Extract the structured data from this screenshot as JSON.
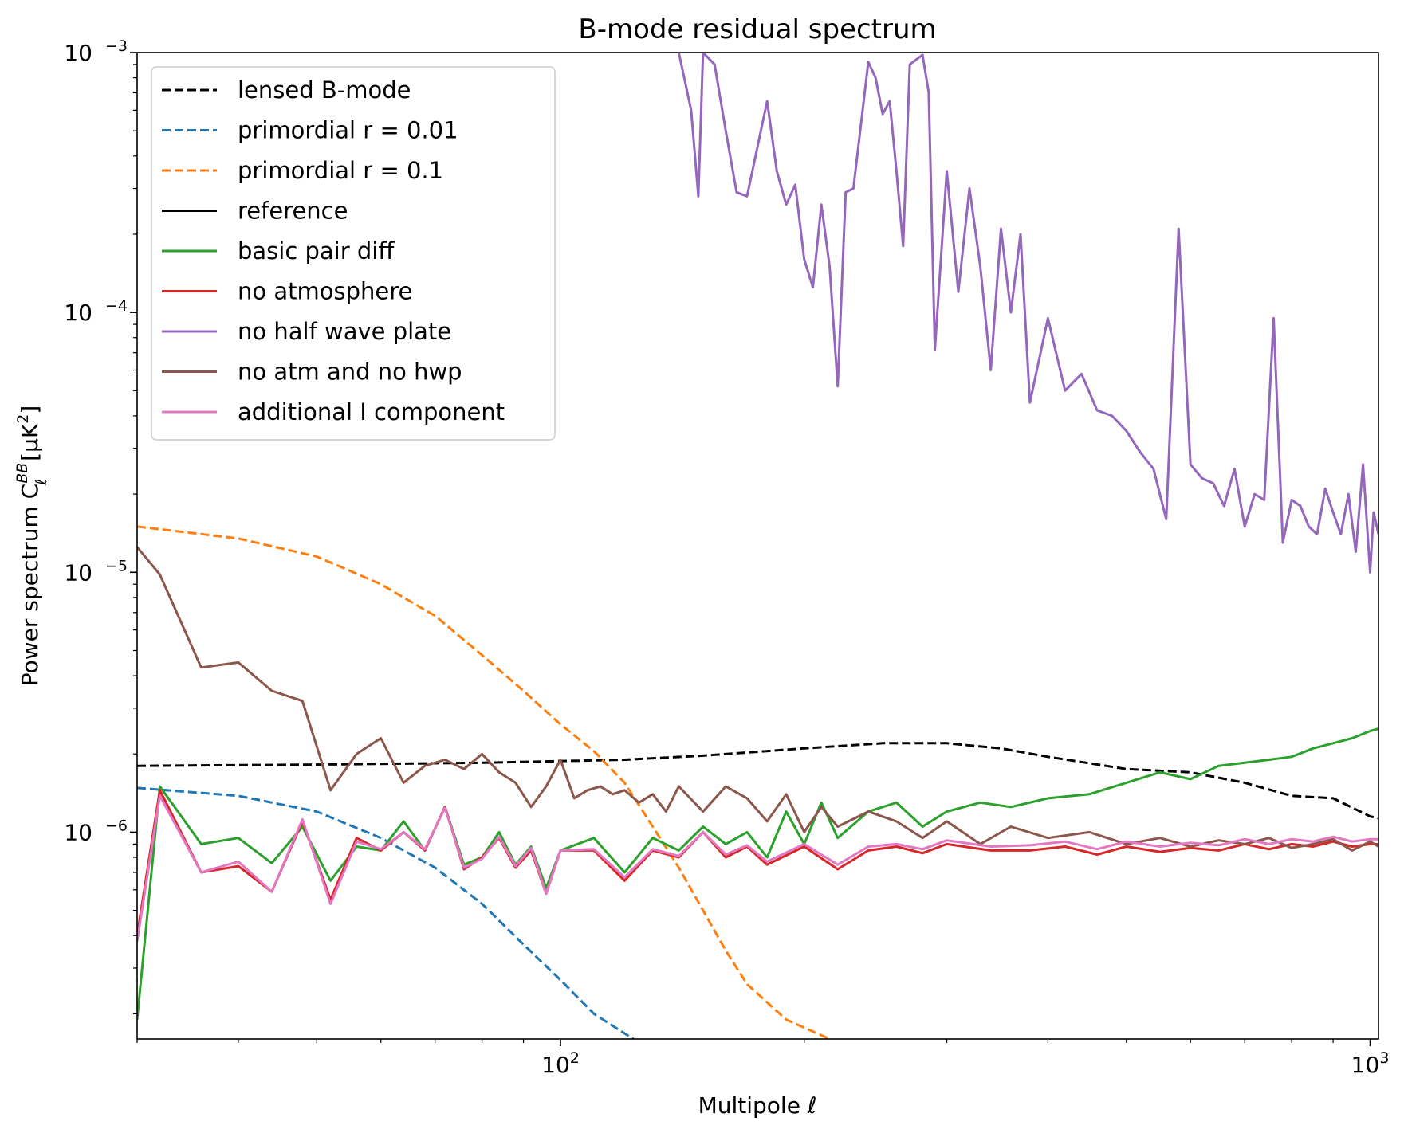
{
  "chart_data": {
    "type": "line",
    "title": "B-mode residual spectrum",
    "xlabel": "Multipole ℓ",
    "ylabel": "Power spectrum C",
    "ylabel_sup": "BB",
    "ylabel_sub": "ℓ",
    "ylabel_unit": "[μK",
    "ylabel_unit_sup": "2",
    "ylabel_unit_end": "]",
    "xscale": "log",
    "yscale": "log",
    "xlim": [
      30,
      1024
    ],
    "ylim": [
      1.6e-07,
      0.001
    ],
    "legend_position": "top-left",
    "x_ticks": [
      {
        "value": 100,
        "base": "10",
        "exp": "2"
      },
      {
        "value": 1000,
        "base": "10",
        "exp": "3"
      }
    ],
    "y_ticks": [
      {
        "value": 1e-06,
        "base": "10",
        "exp": "−6"
      },
      {
        "value": 1e-05,
        "base": "10",
        "exp": "−5"
      },
      {
        "value": 0.0001,
        "base": "10",
        "exp": "−4"
      },
      {
        "value": 0.001,
        "base": "10",
        "exp": "−3"
      }
    ],
    "series": [
      {
        "name": "lensed B-mode",
        "color": "#000000",
        "style": "dashed",
        "x": [
          30,
          50,
          80,
          120,
          150,
          200,
          250,
          300,
          350,
          400,
          500,
          600,
          700,
          800,
          900,
          1000,
          1024
        ],
        "y": [
          1.8e-06,
          1.82e-06,
          1.85e-06,
          1.9e-06,
          1.97e-06,
          2.1e-06,
          2.2e-06,
          2.2e-06,
          2.1e-06,
          1.95e-06,
          1.75e-06,
          1.7e-06,
          1.55e-06,
          1.38e-06,
          1.35e-06,
          1.15e-06,
          1.13e-06
        ]
      },
      {
        "name": "primordial r = 0.01",
        "color": "#1f77b4",
        "style": "dashed",
        "x": [
          30,
          40,
          50,
          60,
          70,
          80,
          90,
          100,
          110,
          125
        ],
        "y": [
          1.48e-06,
          1.38e-06,
          1.2e-06,
          9.5e-07,
          7.3e-07,
          5.3e-07,
          3.7e-07,
          2.7e-07,
          2e-07,
          1.55e-07
        ]
      },
      {
        "name": "primordial r = 0.1",
        "color": "#ff7f0e",
        "style": "dashed",
        "x": [
          30,
          40,
          50,
          60,
          70,
          80,
          90,
          100,
          110,
          120,
          130,
          140,
          150,
          160,
          170,
          190,
          215
        ],
        "y": [
          1.5e-05,
          1.35e-05,
          1.15e-05,
          9e-06,
          6.8e-06,
          4.8e-06,
          3.5e-06,
          2.6e-06,
          2.05e-06,
          1.55e-06,
          1.05e-06,
          7.3e-07,
          5e-07,
          3.5e-07,
          2.6e-07,
          1.9e-07,
          1.6e-07
        ]
      },
      {
        "name": "reference",
        "color": "#000000",
        "style": "solid",
        "x": [],
        "y": []
      },
      {
        "name": "basic pair diff",
        "color": "#2ca02c",
        "style": "solid",
        "x": [
          30,
          32,
          36,
          40,
          44,
          48,
          52,
          56,
          60,
          64,
          68,
          72,
          76,
          80,
          84,
          88,
          92,
          96,
          100,
          110,
          120,
          130,
          140,
          150,
          160,
          170,
          180,
          190,
          200,
          210,
          220,
          240,
          260,
          280,
          300,
          330,
          360,
          400,
          450,
          500,
          550,
          600,
          650,
          700,
          750,
          800,
          850,
          900,
          950,
          1000,
          1024
        ],
        "y": [
          1.9e-07,
          1.5e-06,
          9e-07,
          9.5e-07,
          7.6e-07,
          1.05e-06,
          6.5e-07,
          8.8e-07,
          8.5e-07,
          1.1e-06,
          8.5e-07,
          1.25e-06,
          7.5e-07,
          8e-07,
          1e-06,
          7.5e-07,
          8.8e-07,
          6.1e-07,
          8.5e-07,
          9.5e-07,
          7e-07,
          9.5e-07,
          8.5e-07,
          1.05e-06,
          9e-07,
          1e-06,
          8e-07,
          1.2e-06,
          9e-07,
          1.3e-06,
          9.5e-07,
          1.2e-06,
          1.3e-06,
          1.05e-06,
          1.2e-06,
          1.3e-06,
          1.25e-06,
          1.35e-06,
          1.4e-06,
          1.55e-06,
          1.7e-06,
          1.6e-06,
          1.8e-06,
          1.85e-06,
          1.9e-06,
          1.95e-06,
          2.1e-06,
          2.2e-06,
          2.3e-06,
          2.45e-06,
          2.5e-06
        ]
      },
      {
        "name": "no atmosphere",
        "color": "#d62728",
        "style": "solid",
        "x": [
          30,
          32,
          36,
          40,
          44,
          48,
          52,
          56,
          60,
          64,
          68,
          72,
          76,
          80,
          84,
          88,
          92,
          96,
          100,
          110,
          120,
          130,
          140,
          150,
          160,
          170,
          180,
          200,
          220,
          240,
          260,
          280,
          300,
          340,
          380,
          420,
          460,
          500,
          550,
          600,
          650,
          700,
          750,
          800,
          850,
          900,
          950,
          1000,
          1024
        ],
        "y": [
          4e-07,
          1.45e-06,
          7e-07,
          7.4e-07,
          5.9e-07,
          1.1e-06,
          5.5e-07,
          9.5e-07,
          8.5e-07,
          1e-06,
          8.5e-07,
          1.25e-06,
          7.2e-07,
          8e-07,
          9.5e-07,
          7.3e-07,
          8.5e-07,
          5.8e-07,
          8.5e-07,
          8.5e-07,
          6.5e-07,
          8.5e-07,
          8e-07,
          1e-06,
          8e-07,
          8.8e-07,
          7.5e-07,
          8.8e-07,
          7.2e-07,
          8.5e-07,
          8.8e-07,
          8.3e-07,
          9e-07,
          8.5e-07,
          8.5e-07,
          8.8e-07,
          8.2e-07,
          8.8e-07,
          8.4e-07,
          8.7e-07,
          8.5e-07,
          9e-07,
          8.6e-07,
          9e-07,
          8.8e-07,
          9.2e-07,
          8.8e-07,
          9e-07,
          9e-07
        ]
      },
      {
        "name": "no half wave plate",
        "color": "#9467bd",
        "style": "solid",
        "x": [
          140,
          145,
          148,
          150,
          155,
          160,
          165,
          170,
          180,
          185,
          190,
          195,
          200,
          205,
          210,
          215,
          220,
          225,
          230,
          240,
          245,
          250,
          255,
          260,
          265,
          270,
          280,
          285,
          290,
          300,
          310,
          320,
          330,
          340,
          350,
          360,
          370,
          380,
          400,
          420,
          440,
          460,
          480,
          500,
          520,
          540,
          560,
          580,
          600,
          620,
          640,
          660,
          680,
          700,
          720,
          740,
          760,
          780,
          800,
          820,
          840,
          860,
          880,
          900,
          920,
          940,
          960,
          980,
          1000,
          1010,
          1024
        ],
        "y": [
          0.001,
          0.0006,
          0.00028,
          0.001,
          0.0009,
          0.0005,
          0.00029,
          0.00028,
          0.00065,
          0.00035,
          0.00026,
          0.00031,
          0.00016,
          0.000125,
          0.00026,
          0.00015,
          5.2e-05,
          0.00029,
          0.0003,
          0.00092,
          0.0008,
          0.00058,
          0.00065,
          0.00035,
          0.00018,
          0.0009,
          0.00098,
          0.0007,
          7.2e-05,
          0.00035,
          0.00012,
          0.0003,
          0.00015,
          6e-05,
          0.00021,
          0.0001,
          0.0002,
          4.5e-05,
          9.5e-05,
          5e-05,
          5.8e-05,
          4.2e-05,
          4e-05,
          3.5e-05,
          2.9e-05,
          2.5e-05,
          1.6e-05,
          0.00021,
          2.6e-05,
          2.3e-05,
          2.2e-05,
          1.8e-05,
          2.5e-05,
          1.5e-05,
          2e-05,
          1.9e-05,
          9.5e-05,
          1.3e-05,
          1.9e-05,
          1.8e-05,
          1.5e-05,
          1.4e-05,
          2.1e-05,
          1.7e-05,
          1.4e-05,
          2e-05,
          1.2e-05,
          2.6e-05,
          1e-05,
          1.7e-05,
          1.4e-05
        ]
      },
      {
        "name": "no atm and no hwp",
        "color": "#8c564b",
        "style": "solid",
        "x": [
          30,
          32,
          36,
          40,
          44,
          48,
          52,
          56,
          60,
          64,
          68,
          72,
          76,
          80,
          84,
          88,
          92,
          96,
          100,
          104,
          108,
          112,
          116,
          120,
          125,
          130,
          135,
          140,
          150,
          160,
          170,
          180,
          190,
          200,
          210,
          220,
          240,
          260,
          280,
          300,
          330,
          360,
          400,
          450,
          500,
          550,
          600,
          650,
          700,
          750,
          800,
          850,
          900,
          950,
          1000,
          1024
        ],
        "y": [
          1.25e-05,
          9.8e-06,
          4.3e-06,
          4.5e-06,
          3.5e-06,
          3.2e-06,
          1.45e-06,
          2e-06,
          2.3e-06,
          1.55e-06,
          1.8e-06,
          1.9e-06,
          1.75e-06,
          2e-06,
          1.7e-06,
          1.55e-06,
          1.25e-06,
          1.5e-06,
          1.9e-06,
          1.35e-06,
          1.45e-06,
          1.5e-06,
          1.4e-06,
          1.45e-06,
          1.3e-06,
          1.4e-06,
          1.2e-06,
          1.5e-06,
          1.2e-06,
          1.5e-06,
          1.35e-06,
          1.1e-06,
          1.4e-06,
          1e-06,
          1.25e-06,
          1.05e-06,
          1.2e-06,
          1.1e-06,
          9.5e-07,
          1.1e-06,
          9e-07,
          1.05e-06,
          9.5e-07,
          1e-06,
          9e-07,
          9.5e-07,
          8.8e-07,
          9.3e-07,
          9e-07,
          9.5e-07,
          8.7e-07,
          9e-07,
          9.4e-07,
          8.5e-07,
          9.2e-07,
          8.8e-07
        ]
      },
      {
        "name": "additional I component",
        "color": "#e377c2",
        "style": "solid",
        "x": [
          30,
          32,
          36,
          40,
          44,
          48,
          52,
          56,
          60,
          64,
          68,
          72,
          76,
          80,
          84,
          88,
          92,
          96,
          100,
          110,
          120,
          130,
          140,
          150,
          160,
          170,
          180,
          200,
          220,
          240,
          260,
          280,
          300,
          340,
          380,
          420,
          460,
          500,
          550,
          600,
          650,
          700,
          750,
          800,
          850,
          900,
          950,
          1000,
          1024
        ],
        "y": [
          3.8e-07,
          1.38e-06,
          7e-07,
          7.7e-07,
          5.9e-07,
          1.12e-06,
          5.3e-07,
          9.2e-07,
          8.6e-07,
          1e-06,
          8.6e-07,
          1.24e-06,
          7.3e-07,
          7.9e-07,
          9.6e-07,
          7.4e-07,
          8.7e-07,
          5.8e-07,
          8.5e-07,
          8.6e-07,
          6.7e-07,
          8.6e-07,
          8.1e-07,
          1e-06,
          8.2e-07,
          8.9e-07,
          7.7e-07,
          9e-07,
          7.5e-07,
          8.8e-07,
          9e-07,
          8.6e-07,
          9.3e-07,
          8.8e-07,
          8.9e-07,
          9.2e-07,
          8.6e-07,
          9.2e-07,
          8.8e-07,
          9.1e-07,
          8.9e-07,
          9.4e-07,
          9e-07,
          9.4e-07,
          9.2e-07,
          9.6e-07,
          9.2e-07,
          9.4e-07,
          9.4e-07
        ]
      }
    ],
    "legend": [
      {
        "label": "lensed B-mode",
        "color": "#000000",
        "style": "dashed"
      },
      {
        "label": "primordial r = 0.01",
        "color": "#1f77b4",
        "style": "dashed"
      },
      {
        "label": "primordial r = 0.1",
        "color": "#ff7f0e",
        "style": "dashed"
      },
      {
        "label": "reference",
        "color": "#000000",
        "style": "solid"
      },
      {
        "label": "basic pair diff",
        "color": "#2ca02c",
        "style": "solid"
      },
      {
        "label": "no atmosphere",
        "color": "#d62728",
        "style": "solid"
      },
      {
        "label": "no half wave plate",
        "color": "#9467bd",
        "style": "solid"
      },
      {
        "label": "no atm and no hwp",
        "color": "#8c564b",
        "style": "solid"
      },
      {
        "label": "additional I component",
        "color": "#e377c2",
        "style": "solid"
      }
    ]
  }
}
